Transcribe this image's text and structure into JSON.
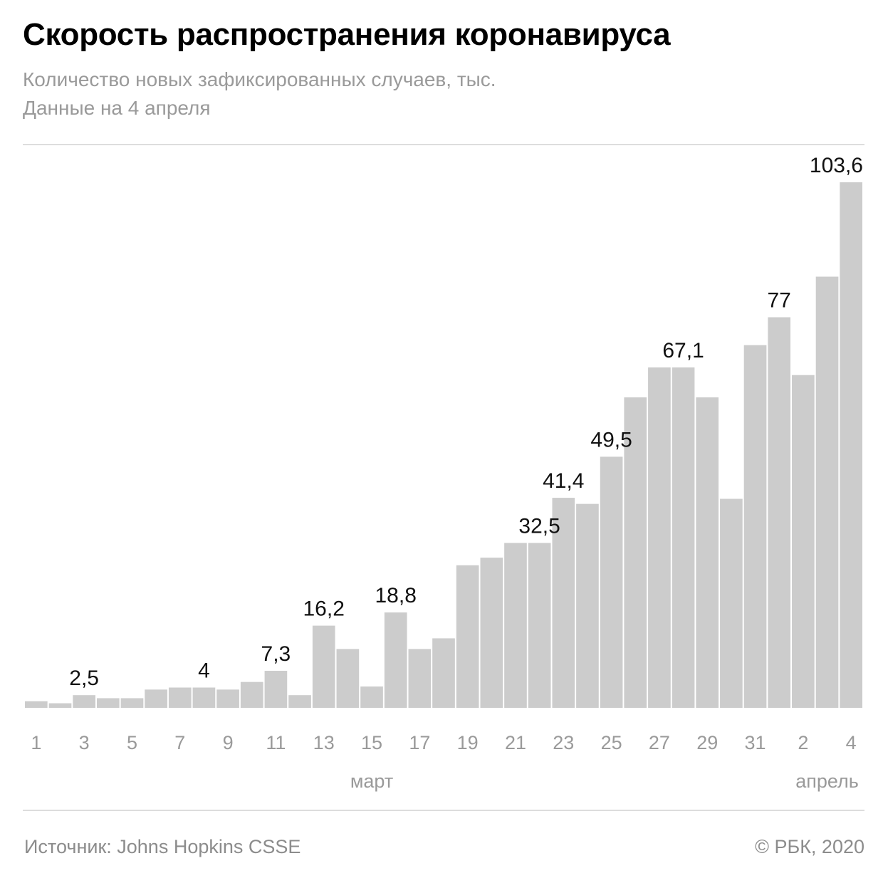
{
  "title": "Скорость распространения коронавируса",
  "subtitle_line1": "Количество новых зафиксированных случаев, тыс.",
  "subtitle_line2": "Данные на 4 апреля",
  "source": "Источник: Johns Hopkins CSSE",
  "copyright": "© РБК, 2020",
  "colors": {
    "bar": "#cccccc",
    "tick_label": "#9a9a9a",
    "value_label": "#111111"
  },
  "chart_data": {
    "type": "bar",
    "categories": [
      "1",
      "2",
      "3",
      "4",
      "5",
      "6",
      "7",
      "8",
      "9",
      "10",
      "11",
      "12",
      "13",
      "14",
      "15",
      "16",
      "17",
      "18",
      "19",
      "20",
      "21",
      "22",
      "23",
      "24",
      "25",
      "26",
      "27",
      "28",
      "29",
      "30",
      "31",
      "1",
      "2",
      "3",
      "4"
    ],
    "values": [
      1.3,
      0.9,
      2.5,
      1.9,
      1.9,
      3.6,
      4.0,
      4.0,
      3.6,
      5.1,
      7.3,
      2.5,
      16.2,
      11.6,
      4.2,
      18.8,
      11.6,
      13.7,
      28.1,
      29.6,
      32.5,
      32.5,
      41.4,
      40.2,
      49.5,
      61.2,
      67.1,
      67.1,
      61.2,
      41.2,
      71.5,
      77.0,
      65.6,
      85.0,
      103.6
    ],
    "value_labels": [
      {
        "index": 2,
        "text": "2,5"
      },
      {
        "index": 7,
        "text": "4"
      },
      {
        "index": 10,
        "text": "7,3"
      },
      {
        "index": 12,
        "text": "16,2"
      },
      {
        "index": 15,
        "text": "18,8"
      },
      {
        "index": 21,
        "text": "32,5"
      },
      {
        "index": 22,
        "text": "41,4"
      },
      {
        "index": 24,
        "text": "49,5"
      },
      {
        "index": 27,
        "text": "67,1"
      },
      {
        "index": 31,
        "text": "77"
      },
      {
        "index": 34,
        "text": "103,6"
      }
    ],
    "tick_labels": [
      {
        "index": 0,
        "text": "1"
      },
      {
        "index": 2,
        "text": "3"
      },
      {
        "index": 4,
        "text": "5"
      },
      {
        "index": 6,
        "text": "7"
      },
      {
        "index": 8,
        "text": "9"
      },
      {
        "index": 10,
        "text": "11"
      },
      {
        "index": 12,
        "text": "13"
      },
      {
        "index": 14,
        "text": "15"
      },
      {
        "index": 16,
        "text": "17"
      },
      {
        "index": 18,
        "text": "19"
      },
      {
        "index": 20,
        "text": "21"
      },
      {
        "index": 22,
        "text": "23"
      },
      {
        "index": 24,
        "text": "25"
      },
      {
        "index": 26,
        "text": "27"
      },
      {
        "index": 28,
        "text": "29"
      },
      {
        "index": 30,
        "text": "31"
      },
      {
        "index": 32,
        "text": "2"
      },
      {
        "index": 34,
        "text": "4"
      }
    ],
    "month_labels": [
      {
        "index": 14,
        "text": "март"
      },
      {
        "index": 33,
        "text": "апрель"
      }
    ],
    "ylim": [
      0,
      103.6
    ],
    "xlabel": "",
    "ylabel": "",
    "grid": false,
    "legend": "none"
  }
}
